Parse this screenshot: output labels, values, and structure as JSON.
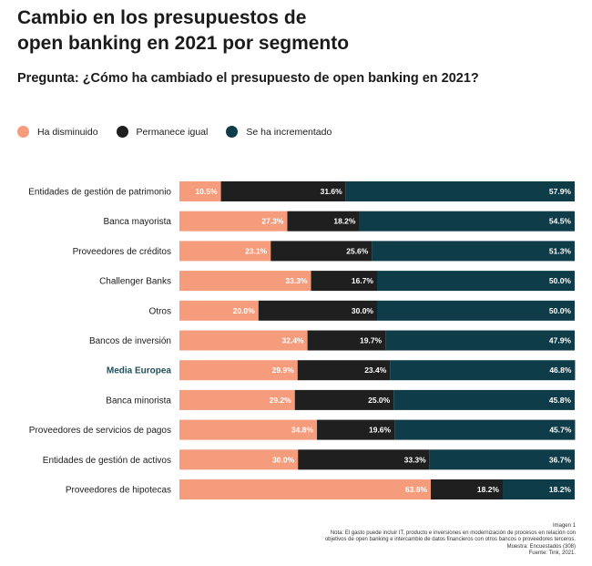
{
  "title_lines": [
    "Cambio en los presupuestos de",
    "open banking en 2021 por segmento"
  ],
  "question": "Pregunta: ¿Cómo ha cambiado el presupuesto de open banking en 2021?",
  "colors": {
    "decreased": "#f59c7c",
    "same": "#1f1f1f",
    "increased": "#0e3d49",
    "highlight_label": "#1f4f5d"
  },
  "chart_data": {
    "type": "bar",
    "orientation": "horizontal",
    "stacked": true,
    "percent_scale": [
      0,
      100
    ],
    "legend_placement": "top-left",
    "categories": [
      "Entidades de gestión de patrimonio",
      "Banca mayorista",
      "Proveedores de créditos",
      "Challenger Banks",
      "Otros",
      "Bancos de inversión",
      "Media Europea",
      "Banca minorista",
      "Proveedores de servicios de pagos",
      "Entidades de gestión de activos",
      "Proveedores de hipotecas"
    ],
    "highlighted_category": "Media Europea",
    "series": [
      {
        "name": "Ha disminuido",
        "values": [
          10.5,
          27.3,
          23.1,
          33.3,
          20.0,
          32.4,
          29.9,
          29.2,
          34.8,
          30.0,
          63.6
        ],
        "labels": [
          "10.5%",
          "27.3%",
          "23.1%",
          "33.3%",
          "20.0%",
          "32.4%",
          "29.9%",
          "29.2%",
          "34.8%",
          "30.0%",
          "63.6%"
        ]
      },
      {
        "name": "Permanece igual",
        "values": [
          31.6,
          18.2,
          25.6,
          16.7,
          30.0,
          19.7,
          23.4,
          25.0,
          19.6,
          33.3,
          18.2
        ],
        "labels": [
          "31.6%",
          "18.2%",
          "25.6%",
          "16.7%",
          "30.0%",
          "19.7%",
          "23.4%",
          "25.0%",
          "19.6%",
          "33.3%",
          "18.2%"
        ]
      },
      {
        "name": "Se ha incrementado",
        "values": [
          57.9,
          54.5,
          51.3,
          50.0,
          50.0,
          47.9,
          46.8,
          45.8,
          45.7,
          36.7,
          18.2
        ],
        "labels": [
          "57.9%",
          "54.5%",
          "51.3%",
          "50.0%",
          "50.0%",
          "47.9%",
          "46.8%",
          "45.8%",
          "45.7%",
          "36.7%",
          "18.2%"
        ]
      }
    ]
  },
  "footnote_lines": [
    "Imagen 1",
    "Nota: El gasto puede incluir IT, producto e inversiones en modernización de procesos en relación con",
    "objetivos de open banking e intercambio de datos financieros con otros bancos o proveedores terceros.",
    "Muestra: Encuestados (308)",
    "Fuente: Tink, 2021."
  ]
}
